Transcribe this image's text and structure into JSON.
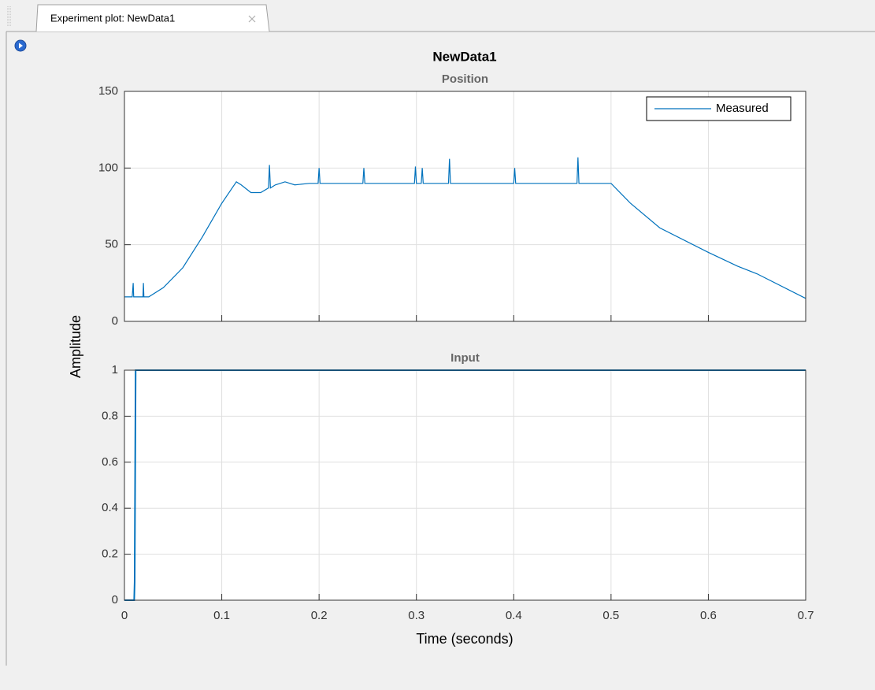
{
  "tab": {
    "title": "Experiment plot: NewData1"
  },
  "figure": {
    "title": "NewData1",
    "xlabel": "Time (seconds)",
    "ylabel": "Amplitude"
  },
  "chart_data": [
    {
      "type": "line",
      "title": "Position",
      "x": [
        0,
        0.008,
        0.009,
        0.0095,
        0.019,
        0.0195,
        0.02,
        0.025,
        0.04,
        0.06,
        0.08,
        0.1,
        0.115,
        0.12,
        0.13,
        0.14,
        0.148,
        0.149,
        0.15,
        0.155,
        0.165,
        0.175,
        0.19,
        0.199,
        0.2,
        0.201,
        0.245,
        0.246,
        0.247,
        0.298,
        0.299,
        0.3,
        0.305,
        0.306,
        0.307,
        0.333,
        0.334,
        0.335,
        0.4,
        0.401,
        0.402,
        0.465,
        0.466,
        0.467,
        0.5,
        0.52,
        0.55,
        0.6,
        0.63,
        0.65,
        0.7
      ],
      "series": [
        {
          "name": "Measured",
          "color": "#0072bd",
          "values": [
            16,
            16,
            25,
            16,
            16,
            25,
            16,
            16,
            22,
            35,
            55,
            77,
            91,
            89,
            84,
            84,
            87,
            102,
            87,
            89,
            91,
            89,
            90,
            90,
            100,
            90,
            90,
            100,
            90,
            90,
            101,
            90,
            90,
            100,
            90,
            90,
            106,
            90,
            90,
            100,
            90,
            90,
            107,
            90,
            90,
            77,
            61,
            45,
            36,
            31,
            15
          ]
        }
      ],
      "xlim": [
        0,
        0.7
      ],
      "xticks": [
        0,
        0.1,
        0.2,
        0.3,
        0.4,
        0.5,
        0.6,
        0.7
      ],
      "ylim": [
        0,
        150
      ],
      "yticks": [
        0,
        50,
        100,
        150
      ],
      "grid": true,
      "legend": "upper right"
    },
    {
      "type": "line",
      "title": "Input",
      "x": [
        0,
        0.01,
        0.0105,
        0.0115,
        0.7
      ],
      "series": [
        {
          "color": "#0072bd",
          "values": [
            0,
            0,
            0.08,
            1,
            1
          ]
        }
      ],
      "xlim": [
        0,
        0.7
      ],
      "xticks": [
        0,
        0.1,
        0.2,
        0.3,
        0.4,
        0.5,
        0.6,
        0.7
      ],
      "ylim": [
        0,
        1
      ],
      "yticks": [
        0,
        0.2,
        0.4,
        0.6,
        0.8,
        1
      ],
      "grid": true
    }
  ]
}
